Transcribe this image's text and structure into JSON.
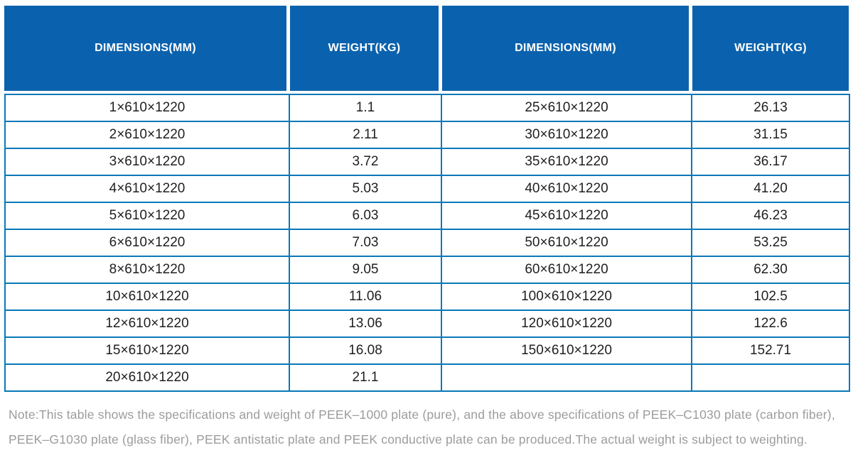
{
  "table": {
    "header": [
      "DIMENSIONS(MM)",
      "WEIGHT(KG)",
      "DIMENSIONS(MM)",
      "WEIGHT(KG)"
    ],
    "rows": [
      [
        "1×610×1220",
        "1.1",
        "25×610×1220",
        "26.13"
      ],
      [
        "2×610×1220",
        "2.11",
        "30×610×1220",
        "31.15"
      ],
      [
        "3×610×1220",
        "3.72",
        "35×610×1220",
        "36.17"
      ],
      [
        "4×610×1220",
        "5.03",
        "40×610×1220",
        "41.20"
      ],
      [
        "5×610×1220",
        "6.03",
        "45×610×1220",
        "46.23"
      ],
      [
        "6×610×1220",
        "7.03",
        "50×610×1220",
        "53.25"
      ],
      [
        "8×610×1220",
        "9.05",
        "60×610×1220",
        "62.30"
      ],
      [
        "10×610×1220",
        "11.06",
        "100×610×1220",
        "102.5"
      ],
      [
        "12×610×1220",
        "13.06",
        "120×610×1220",
        "122.6"
      ],
      [
        "15×610×1220",
        "16.08",
        "150×610×1220",
        "152.71"
      ],
      [
        "20×610×1220",
        "21.1",
        "",
        ""
      ]
    ]
  },
  "note": {
    "line1": "Note:This table shows the specifications and weight of PEEK–1000 plate (pure), and the above specifications of PEEK–C1030 plate (carbon fiber),",
    "line2": "PEEK–G1030 plate (glass fiber), PEEK antistatic plate and PEEK conductive plate can be produced.The actual weight is subject to weighting."
  },
  "colors": {
    "header_bg": "#0a62ae",
    "grid_border": "#0a78b8",
    "header_text": "#ffffff",
    "cell_text": "#1f1f1f",
    "note_text": "#9c9c9c"
  }
}
